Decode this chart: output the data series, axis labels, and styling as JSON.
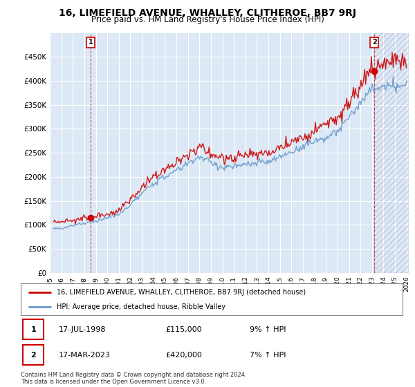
{
  "title": "16, LIMEFIELD AVENUE, WHALLEY, CLITHEROE, BB7 9RJ",
  "subtitle": "Price paid vs. HM Land Registry's House Price Index (HPI)",
  "legend_line1": "16, LIMEFIELD AVENUE, WHALLEY, CLITHEROE, BB7 9RJ (detached house)",
  "legend_line2": "HPI: Average price, detached house, Ribble Valley",
  "annotation1_date": "17-JUL-1998",
  "annotation1_price": "£115,000",
  "annotation1_hpi": "9% ↑ HPI",
  "annotation2_date": "17-MAR-2023",
  "annotation2_price": "£420,000",
  "annotation2_hpi": "7% ↑ HPI",
  "footer": "Contains HM Land Registry data © Crown copyright and database right 2024.\nThis data is licensed under the Open Government Licence v3.0.",
  "price_color": "#cc0000",
  "hpi_color": "#6699cc",
  "background_color": "#ffffff",
  "plot_bg_color": "#dce8f5",
  "grid_color": "#ffffff",
  "ylim": [
    0,
    500000
  ],
  "yticks": [
    0,
    50000,
    100000,
    150000,
    200000,
    250000,
    300000,
    350000,
    400000,
    450000
  ],
  "xlim_start": 1995.3,
  "xlim_end": 2026.2,
  "point1_x": 1998.54,
  "point1_y": 115000,
  "point2_x": 2023.21,
  "point2_y": 420000
}
